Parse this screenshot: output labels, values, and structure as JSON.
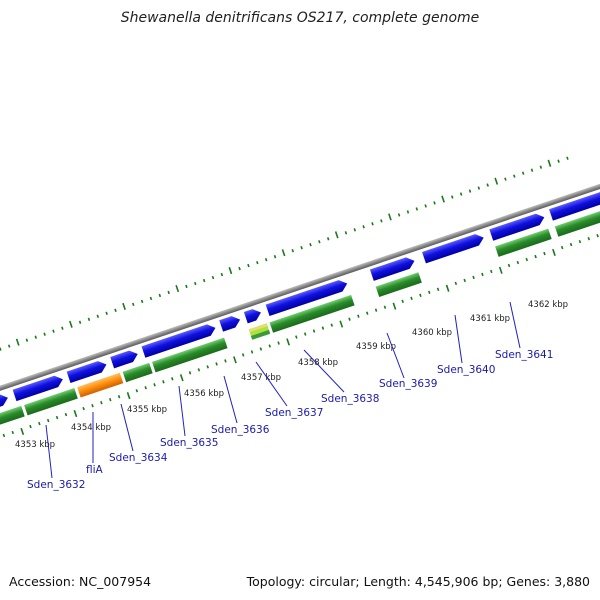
{
  "title": "Shewanella denitrificans OS217, complete genome",
  "footer": {
    "accession": "Accession: NC_007954",
    "summary": "Topology: circular; Length: 4,545,906 bp; Genes: 3,880"
  },
  "colors": {
    "backbone": "#8a8a8a",
    "gene_strand": "#1010e0",
    "cds_track": "#2a8a2a",
    "highlight_orange": "#ff9010",
    "highlight_lime": "#b0e040",
    "tick": "#1a7a1a",
    "label_line": "#2020c0"
  },
  "kbp_labels": [
    "4353 kbp",
    "4354 kbp",
    "4355 kbp",
    "4356 kbp",
    "4357 kbp",
    "4358 kbp",
    "4359 kbp",
    "4360 kbp",
    "4361 kbp",
    "4362 kbp"
  ],
  "gene_labels": [
    "Sden_3632",
    "fliA",
    "Sden_3634",
    "Sden_3635",
    "Sden_3636",
    "Sden_3637",
    "Sden_3638",
    "Sden_3639",
    "Sden_3640",
    "Sden_3641"
  ]
}
